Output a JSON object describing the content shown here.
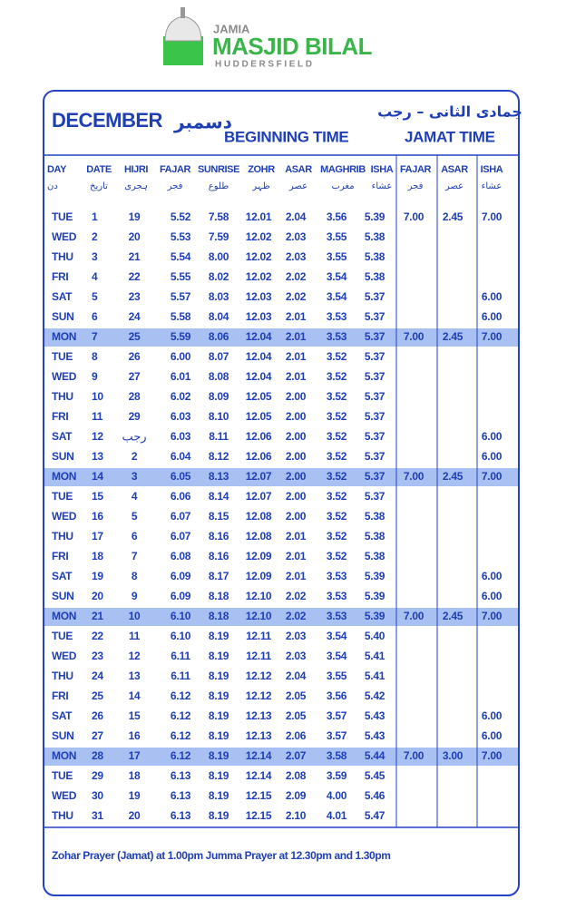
{
  "logo": {
    "top": "JAMIA",
    "name": "MASJID BILAL",
    "place": "HUDDERSFIELD"
  },
  "header": {
    "month": "DECEMBER",
    "month_urdu": "دسمبر",
    "beginning": "BEGINNING TIME",
    "hijri_months": "جمادی الثانی – رجب",
    "jamat": "JAMAT TIME"
  },
  "columns": [
    {
      "en": "DAY",
      "ur": "دن"
    },
    {
      "en": "DATE",
      "ur": "تاریخ"
    },
    {
      "en": "HIJRI",
      "ur": "ہجری"
    },
    {
      "en": "FAJAR",
      "ur": "فجر"
    },
    {
      "en": "SUNRISE",
      "ur": "طلوع"
    },
    {
      "en": "ZOHR",
      "ur": "ظہر"
    },
    {
      "en": "ASAR",
      "ur": "عصر"
    },
    {
      "en": "MAGHRIB",
      "ur": "مغرب"
    },
    {
      "en": "ISHA",
      "ur": "عشاء"
    },
    {
      "en": "FAJAR",
      "ur": "فجر"
    },
    {
      "en": "ASAR",
      "ur": "عصر"
    },
    {
      "en": "ISHA",
      "ur": "عشاء"
    }
  ],
  "rows": [
    [
      "TUE",
      "1",
      "19",
      "5.52",
      "7.58",
      "12.01",
      "2.04",
      "3.56",
      "5.39",
      "7.00",
      "2.45",
      "7.00"
    ],
    [
      "WED",
      "2",
      "20",
      "5.53",
      "7.59",
      "12.02",
      "2.03",
      "3.55",
      "5.38",
      null,
      null,
      null
    ],
    [
      "THU",
      "3",
      "21",
      "5.54",
      "8.00",
      "12.02",
      "2.03",
      "3.55",
      "5.38",
      null,
      null,
      null
    ],
    [
      "FRI",
      "4",
      "22",
      "5.55",
      "8.02",
      "12.02",
      "2.02",
      "3.54",
      "5.38",
      null,
      null,
      null
    ],
    [
      "SAT",
      "5",
      "23",
      "5.57",
      "8.03",
      "12.03",
      "2.02",
      "3.54",
      "5.37",
      null,
      null,
      "6.00"
    ],
    [
      "SUN",
      "6",
      "24",
      "5.58",
      "8.04",
      "12.03",
      "2.01",
      "3.53",
      "5.37",
      null,
      null,
      "6.00"
    ],
    [
      "MON",
      "7",
      "25",
      "5.59",
      "8.06",
      "12.04",
      "2.01",
      "3.53",
      "5.37",
      "7.00",
      "2.45",
      "7.00"
    ],
    [
      "TUE",
      "8",
      "26",
      "6.00",
      "8.07",
      "12.04",
      "2.01",
      "3.52",
      "5.37",
      null,
      null,
      null
    ],
    [
      "WED",
      "9",
      "27",
      "6.01",
      "8.08",
      "12.04",
      "2.01",
      "3.52",
      "5.37",
      null,
      null,
      null
    ],
    [
      "THU",
      "10",
      "28",
      "6.02",
      "8.09",
      "12.05",
      "2.00",
      "3.52",
      "5.37",
      null,
      null,
      null
    ],
    [
      "FRI",
      "11",
      "29",
      "6.03",
      "8.10",
      "12.05",
      "2.00",
      "3.52",
      "5.37",
      null,
      null,
      null
    ],
    [
      "SAT",
      "12",
      "رجب",
      "6.03",
      "8.11",
      "12.06",
      "2.00",
      "3.52",
      "5.37",
      null,
      null,
      "6.00"
    ],
    [
      "SUN",
      "13",
      "2",
      "6.04",
      "8.12",
      "12.06",
      "2.00",
      "3.52",
      "5.37",
      null,
      null,
      "6.00"
    ],
    [
      "MON",
      "14",
      "3",
      "6.05",
      "8.13",
      "12.07",
      "2.00",
      "3.52",
      "5.37",
      "7.00",
      "2.45",
      "7.00"
    ],
    [
      "TUE",
      "15",
      "4",
      "6.06",
      "8.14",
      "12.07",
      "2.00",
      "3.52",
      "5.37",
      null,
      null,
      null
    ],
    [
      "WED",
      "16",
      "5",
      "6.07",
      "8.15",
      "12.08",
      "2.00",
      "3.52",
      "5.38",
      null,
      null,
      null
    ],
    [
      "THU",
      "17",
      "6",
      "6.07",
      "8.16",
      "12.08",
      "2.01",
      "3.52",
      "5.38",
      null,
      null,
      null
    ],
    [
      "FRI",
      "18",
      "7",
      "6.08",
      "8.16",
      "12.09",
      "2.01",
      "3.52",
      "5.38",
      null,
      null,
      null
    ],
    [
      "SAT",
      "19",
      "8",
      "6.09",
      "8.17",
      "12.09",
      "2.01",
      "3.53",
      "5.39",
      null,
      null,
      "6.00"
    ],
    [
      "SUN",
      "20",
      "9",
      "6.09",
      "8.18",
      "12.10",
      "2.02",
      "3.53",
      "5.39",
      null,
      null,
      "6.00"
    ],
    [
      "MON",
      "21",
      "10",
      "6.10",
      "8.18",
      "12.10",
      "2.02",
      "3.53",
      "5.39",
      "7.00",
      "2.45",
      "7.00"
    ],
    [
      "TUE",
      "22",
      "11",
      "6.10",
      "8.19",
      "12.11",
      "2.03",
      "3.54",
      "5.40",
      null,
      null,
      null
    ],
    [
      "WED",
      "23",
      "12",
      "6.11",
      "8.19",
      "12.11",
      "2.03",
      "3.54",
      "5.41",
      null,
      null,
      null
    ],
    [
      "THU",
      "24",
      "13",
      "6.11",
      "8.19",
      "12.12",
      "2.04",
      "3.55",
      "5.41",
      null,
      null,
      null
    ],
    [
      "FRI",
      "25",
      "14",
      "6.12",
      "8.19",
      "12.12",
      "2.05",
      "3.56",
      "5.42",
      null,
      null,
      null
    ],
    [
      "SAT",
      "26",
      "15",
      "6.12",
      "8.19",
      "12.13",
      "2.05",
      "3.57",
      "5.43",
      null,
      null,
      "6.00"
    ],
    [
      "SUN",
      "27",
      "16",
      "6.12",
      "8.19",
      "12.13",
      "2.06",
      "3.57",
      "5.43",
      null,
      null,
      "6.00"
    ],
    [
      "MON",
      "28",
      "17",
      "6.12",
      "8.19",
      "12.14",
      "2.07",
      "3.58",
      "5.44",
      "7.00",
      "3.00",
      "7.00"
    ],
    [
      "TUE",
      "29",
      "18",
      "6.13",
      "8.19",
      "12.14",
      "2.08",
      "3.59",
      "5.45",
      null,
      null,
      null
    ],
    [
      "WED",
      "30",
      "19",
      "6.13",
      "8.19",
      "12.15",
      "2.09",
      "4.00",
      "5.46",
      null,
      null,
      null
    ],
    [
      "THU",
      "31",
      "20",
      "6.13",
      "8.19",
      "12.15",
      "2.10",
      "4.01",
      "5.47",
      null,
      null,
      null
    ]
  ],
  "highlighted_rows": [
    6,
    13,
    20,
    27
  ],
  "footer": "Zohar Prayer (Jamat) at 1.00pm Jumma Prayer at 12.30pm and 1.30pm"
}
